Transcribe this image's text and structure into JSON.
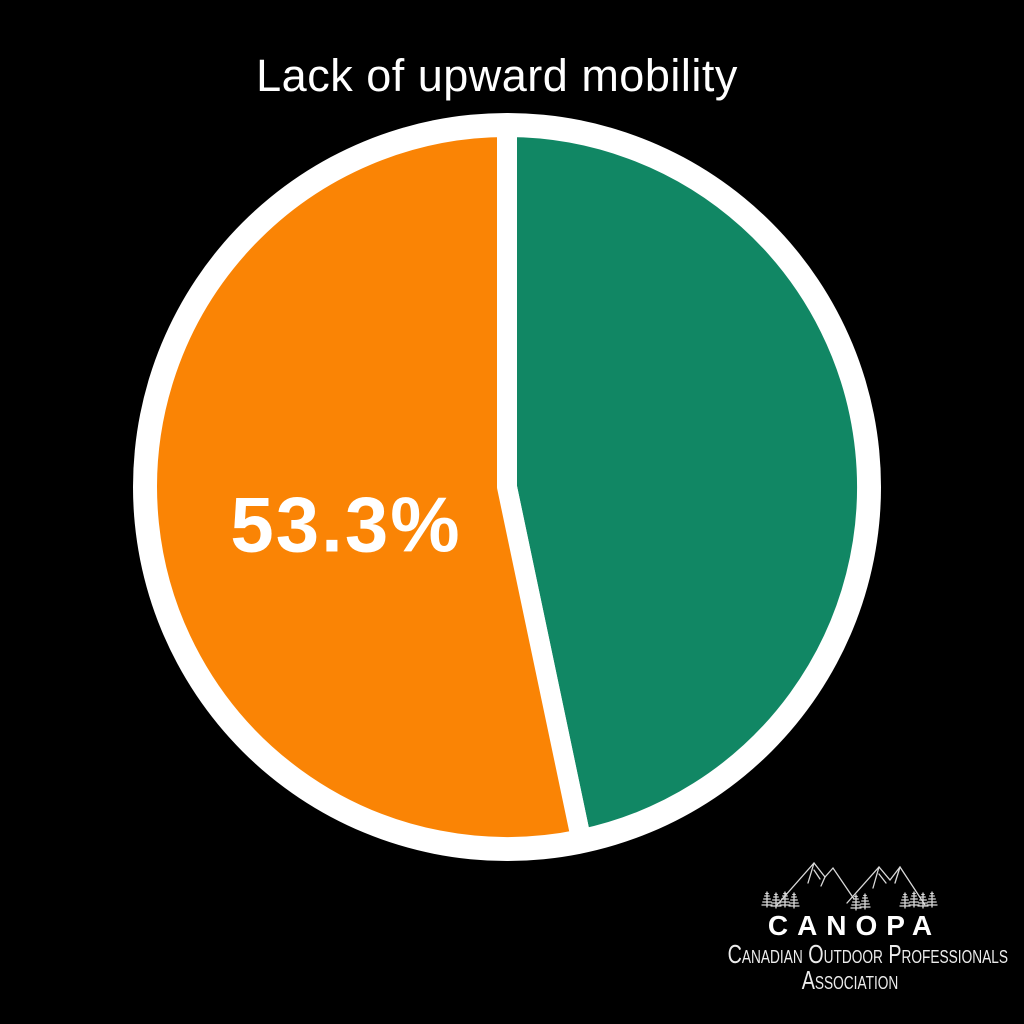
{
  "page": {
    "background_color": "#000000"
  },
  "chart_data": {
    "type": "pie",
    "title": "Lack of upward mobility",
    "slices": [
      {
        "label": "",
        "value": 46.7,
        "color": "#118764",
        "labeled": false
      },
      {
        "label": "53.3%",
        "value": 53.3,
        "color": "#FA8405",
        "labeled": true
      }
    ],
    "start_angle_deg": 0,
    "direction": "clockwise",
    "ring_color": "#FFFFFF",
    "slice_label_color": "#FFFFFF",
    "background_color": "#000000",
    "legend": "none"
  },
  "logo": {
    "wordmark": "CANOPA",
    "subtitle_line1": "Canadian Outdoor Professionals",
    "subtitle_line2": "Association",
    "icon": "mountains-and-pines-sketch",
    "wordmark_color": "#FFFFFF",
    "subtitle_color": "#ECECEC"
  }
}
